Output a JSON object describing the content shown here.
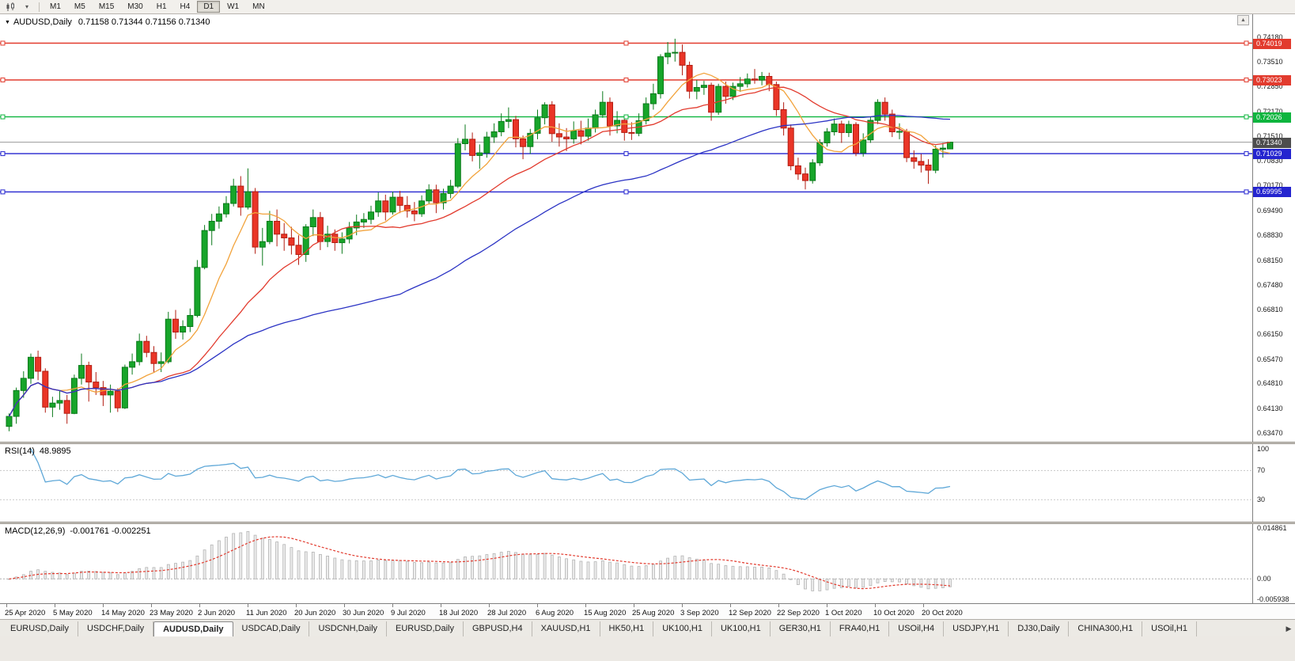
{
  "toolbar": {
    "timeframes": [
      "M1",
      "M5",
      "M15",
      "M30",
      "H1",
      "H4",
      "D1",
      "W1",
      "MN"
    ],
    "active_timeframe": "D1"
  },
  "chart": {
    "header": {
      "symbol_period": "AUDUSD,Daily",
      "ohlc": "0.71158 0.71344 0.71156 0.71340"
    },
    "axis_max": 0.7418,
    "axis_min": 0.6347,
    "price_axis": [
      "0.74180",
      "0.73510",
      "0.72850",
      "0.72170",
      "0.71510",
      "0.70830",
      "0.70170",
      "0.69490",
      "0.68830",
      "0.68150",
      "0.67480",
      "0.66810",
      "0.66150",
      "0.65470",
      "0.64810",
      "0.64130",
      "0.63470"
    ],
    "current_price": {
      "value": "0.71340",
      "price": 0.7134,
      "tag_color": "#4d4d4d"
    },
    "levels": [
      {
        "label": "0.74019",
        "price": 0.74019,
        "color": "#e23b2e"
      },
      {
        "label": "0.73023",
        "price": 0.73023,
        "color": "#e23b2e"
      },
      {
        "label": "0.72026",
        "price": 0.72026,
        "color": "#0eb53e"
      },
      {
        "label": "0.71029",
        "price": 0.71029,
        "color": "#2424cf"
      },
      {
        "label": "0.69995",
        "price": 0.69995,
        "color": "#2424cf"
      }
    ]
  },
  "chart_data": {
    "type": "candlestick",
    "symbol": "AUDUSD",
    "timeframe": "Daily",
    "x_labels": [
      "25 Apr 2020",
      "5 May 2020",
      "14 May 2020",
      "23 May 2020",
      "2 Jun 2020",
      "11 Jun 2020",
      "20 Jun 2020",
      "30 Jun 2020",
      "9 Jul 2020",
      "18 Jul 2020",
      "28 Jul 2020",
      "6 Aug 2020",
      "15 Aug 2020",
      "25 Aug 2020",
      "3 Sep 2020",
      "12 Sep 2020",
      "22 Sep 2020",
      "1 Oct 2020",
      "10 Oct 2020",
      "20 Oct 2020"
    ],
    "colors": {
      "up": "#17a52a",
      "up_border": "#0b7a1b",
      "down": "#ea3527",
      "down_border": "#b21d12",
      "ma_fast": "#f2a33c",
      "ma_mid": "#e23b2e",
      "ma_slow": "#2b33c4",
      "macd_bar": "#b4b4b4"
    },
    "candles": [
      [
        0.6365,
        0.64,
        0.6352,
        0.6392
      ],
      [
        0.6392,
        0.647,
        0.6372,
        0.6462
      ],
      [
        0.6462,
        0.6514,
        0.6442,
        0.6495
      ],
      [
        0.6495,
        0.6562,
        0.648,
        0.6552
      ],
      [
        0.6552,
        0.657,
        0.649,
        0.6514
      ],
      [
        0.6514,
        0.6522,
        0.6402,
        0.6417
      ],
      [
        0.6417,
        0.6445,
        0.639,
        0.6428
      ],
      [
        0.6428,
        0.6462,
        0.641,
        0.6435
      ],
      [
        0.6435,
        0.645,
        0.6372,
        0.64
      ],
      [
        0.64,
        0.6505,
        0.6398,
        0.6495
      ],
      [
        0.6495,
        0.6562,
        0.6478,
        0.653
      ],
      [
        0.653,
        0.654,
        0.6432,
        0.6485
      ],
      [
        0.6485,
        0.6512,
        0.645,
        0.647
      ],
      [
        0.647,
        0.6488,
        0.642,
        0.645
      ],
      [
        0.645,
        0.6478,
        0.6402,
        0.646
      ],
      [
        0.646,
        0.6468,
        0.6404,
        0.6415
      ],
      [
        0.6415,
        0.6532,
        0.6412,
        0.6525
      ],
      [
        0.6525,
        0.6562,
        0.6505,
        0.654
      ],
      [
        0.654,
        0.6616,
        0.653,
        0.6595
      ],
      [
        0.6595,
        0.661,
        0.6552,
        0.6565
      ],
      [
        0.6565,
        0.6582,
        0.651,
        0.6535
      ],
      [
        0.6535,
        0.6565,
        0.6512,
        0.654
      ],
      [
        0.654,
        0.6675,
        0.6535,
        0.6655
      ],
      [
        0.6655,
        0.668,
        0.6602,
        0.662
      ],
      [
        0.662,
        0.6652,
        0.66,
        0.6635
      ],
      [
        0.6635,
        0.6684,
        0.662,
        0.6665
      ],
      [
        0.6665,
        0.6815,
        0.666,
        0.6795
      ],
      [
        0.6795,
        0.691,
        0.679,
        0.6895
      ],
      [
        0.6895,
        0.694,
        0.6855,
        0.692
      ],
      [
        0.692,
        0.696,
        0.69,
        0.694
      ],
      [
        0.694,
        0.6988,
        0.693,
        0.6968
      ],
      [
        0.6968,
        0.7035,
        0.696,
        0.7015
      ],
      [
        0.7015,
        0.7042,
        0.6935,
        0.6958
      ],
      [
        0.6958,
        0.7063,
        0.6952,
        0.7
      ],
      [
        0.7,
        0.701,
        0.6832,
        0.685
      ],
      [
        0.685,
        0.6902,
        0.68,
        0.6865
      ],
      [
        0.6865,
        0.6948,
        0.6858,
        0.692
      ],
      [
        0.692,
        0.6952,
        0.6852,
        0.6885
      ],
      [
        0.6885,
        0.6915,
        0.684,
        0.6875
      ],
      [
        0.6875,
        0.6905,
        0.683,
        0.6855
      ],
      [
        0.6855,
        0.6882,
        0.6802,
        0.683
      ],
      [
        0.683,
        0.6912,
        0.681,
        0.6905
      ],
      [
        0.6905,
        0.6952,
        0.688,
        0.693
      ],
      [
        0.693,
        0.6945,
        0.6842,
        0.6865
      ],
      [
        0.6865,
        0.6908,
        0.685,
        0.6885
      ],
      [
        0.6885,
        0.6898,
        0.684,
        0.6862
      ],
      [
        0.6862,
        0.689,
        0.6832,
        0.6872
      ],
      [
        0.6872,
        0.6918,
        0.686,
        0.6902
      ],
      [
        0.6902,
        0.6938,
        0.6882,
        0.6918
      ],
      [
        0.6918,
        0.6942,
        0.6902,
        0.6925
      ],
      [
        0.6925,
        0.6962,
        0.6912,
        0.6945
      ],
      [
        0.6945,
        0.6998,
        0.6932,
        0.6975
      ],
      [
        0.6975,
        0.6992,
        0.6922,
        0.6945
      ],
      [
        0.6945,
        0.7,
        0.6938,
        0.6985
      ],
      [
        0.6985,
        0.7002,
        0.6942,
        0.6963
      ],
      [
        0.6963,
        0.6988,
        0.693,
        0.6948
      ],
      [
        0.6948,
        0.6972,
        0.692,
        0.694
      ],
      [
        0.694,
        0.699,
        0.6932,
        0.6975
      ],
      [
        0.6975,
        0.702,
        0.6968,
        0.7005
      ],
      [
        0.7005,
        0.7019,
        0.6942,
        0.697
      ],
      [
        0.697,
        0.7008,
        0.6952,
        0.6995
      ],
      [
        0.6995,
        0.7032,
        0.6982,
        0.7015
      ],
      [
        0.7015,
        0.7145,
        0.701,
        0.713
      ],
      [
        0.713,
        0.7182,
        0.7112,
        0.7142
      ],
      [
        0.7142,
        0.716,
        0.7082,
        0.7098
      ],
      [
        0.7098,
        0.7128,
        0.7062,
        0.7105
      ],
      [
        0.7105,
        0.7162,
        0.7092,
        0.7148
      ],
      [
        0.7148,
        0.7185,
        0.7132,
        0.7162
      ],
      [
        0.7162,
        0.7212,
        0.715,
        0.719
      ],
      [
        0.719,
        0.7228,
        0.7172,
        0.7195
      ],
      [
        0.7195,
        0.7205,
        0.712,
        0.7143
      ],
      [
        0.7143,
        0.7152,
        0.7088,
        0.7122
      ],
      [
        0.7122,
        0.717,
        0.7102,
        0.7158
      ],
      [
        0.7158,
        0.7222,
        0.7142,
        0.72
      ],
      [
        0.72,
        0.7242,
        0.7182,
        0.7235
      ],
      [
        0.7235,
        0.7245,
        0.7135,
        0.7157
      ],
      [
        0.7157,
        0.7185,
        0.7122,
        0.7148
      ],
      [
        0.7148,
        0.7172,
        0.711,
        0.7143
      ],
      [
        0.7143,
        0.719,
        0.713,
        0.7165
      ],
      [
        0.7165,
        0.7192,
        0.7128,
        0.715
      ],
      [
        0.715,
        0.7198,
        0.7138,
        0.7172
      ],
      [
        0.7172,
        0.7222,
        0.716,
        0.7208
      ],
      [
        0.7208,
        0.7272,
        0.72,
        0.7242
      ],
      [
        0.7242,
        0.7255,
        0.7152,
        0.7178
      ],
      [
        0.7178,
        0.7218,
        0.7158,
        0.7193
      ],
      [
        0.7193,
        0.7205,
        0.7138,
        0.716
      ],
      [
        0.716,
        0.7188,
        0.714,
        0.7158
      ],
      [
        0.7158,
        0.7212,
        0.715,
        0.7192
      ],
      [
        0.7192,
        0.7255,
        0.7182,
        0.7238
      ],
      [
        0.7238,
        0.7292,
        0.7222,
        0.7265
      ],
      [
        0.7265,
        0.7372,
        0.7252,
        0.7365
      ],
      [
        0.7365,
        0.7405,
        0.7345,
        0.7375
      ],
      [
        0.7375,
        0.7414,
        0.7352,
        0.7377
      ],
      [
        0.7377,
        0.7398,
        0.7315,
        0.7342
      ],
      [
        0.7342,
        0.7352,
        0.7252,
        0.7272
      ],
      [
        0.7272,
        0.7302,
        0.725,
        0.7282
      ],
      [
        0.7282,
        0.73,
        0.7262,
        0.7288
      ],
      [
        0.7288,
        0.7295,
        0.7192,
        0.7215
      ],
      [
        0.7215,
        0.7292,
        0.7208,
        0.7285
      ],
      [
        0.7285,
        0.7298,
        0.7238,
        0.7258
      ],
      [
        0.7258,
        0.7295,
        0.7248,
        0.7285
      ],
      [
        0.7285,
        0.731,
        0.727,
        0.7292
      ],
      [
        0.7292,
        0.732,
        0.7282,
        0.7305
      ],
      [
        0.7305,
        0.7332,
        0.7292,
        0.7302
      ],
      [
        0.7302,
        0.7324,
        0.7288,
        0.7312
      ],
      [
        0.7312,
        0.7322,
        0.7272,
        0.729
      ],
      [
        0.729,
        0.7298,
        0.7205,
        0.7222
      ],
      [
        0.7222,
        0.7242,
        0.7152,
        0.7172
      ],
      [
        0.7172,
        0.7182,
        0.7058,
        0.707
      ],
      [
        0.707,
        0.7092,
        0.7032,
        0.7048
      ],
      [
        0.7048,
        0.7065,
        0.7006,
        0.703
      ],
      [
        0.703,
        0.7088,
        0.7022,
        0.7078
      ],
      [
        0.7078,
        0.7142,
        0.707,
        0.7132
      ],
      [
        0.7132,
        0.7172,
        0.7122,
        0.7162
      ],
      [
        0.7162,
        0.7198,
        0.7152,
        0.7183
      ],
      [
        0.7183,
        0.7192,
        0.7132,
        0.716
      ],
      [
        0.716,
        0.7192,
        0.7148,
        0.7182
      ],
      [
        0.7182,
        0.7188,
        0.7096,
        0.7105
      ],
      [
        0.7105,
        0.7158,
        0.7095,
        0.714
      ],
      [
        0.714,
        0.7202,
        0.7132,
        0.7193
      ],
      [
        0.7193,
        0.725,
        0.7183,
        0.7242
      ],
      [
        0.7242,
        0.7255,
        0.7192,
        0.721
      ],
      [
        0.721,
        0.7222,
        0.7148,
        0.7162
      ],
      [
        0.7162,
        0.7185,
        0.7142,
        0.7163
      ],
      [
        0.7163,
        0.717,
        0.708,
        0.7092
      ],
      [
        0.7092,
        0.7112,
        0.7062,
        0.7082
      ],
      [
        0.7082,
        0.7102,
        0.7052,
        0.7072
      ],
      [
        0.7072,
        0.7088,
        0.7021,
        0.7058
      ],
      [
        0.7058,
        0.7125,
        0.705,
        0.7115
      ],
      [
        0.7115,
        0.7132,
        0.7092,
        0.7118
      ],
      [
        0.71158,
        0.71344,
        0.71156,
        0.7134
      ]
    ]
  },
  "rsi": {
    "name": "RSI(14)",
    "value": "48.9895",
    "period": 14,
    "levels": [
      "100",
      "70",
      "30"
    ],
    "line_color": "#5fa8d8"
  },
  "macd": {
    "name": "MACD(12,26,9)",
    "values": "-0.001761 -0.002251",
    "fast": 12,
    "slow": 26,
    "signal_period": 9,
    "axis": [
      "0.014861",
      "0.00",
      "-0.005938"
    ],
    "axis_max": 0.014861,
    "axis_min": -0.005938,
    "signal_color": "#e23b2e"
  },
  "tabs": {
    "active_index": 2,
    "items": [
      "EURUSD,Daily",
      "USDCHF,Daily",
      "AUDUSD,Daily",
      "USDCAD,Daily",
      "USDCNH,Daily",
      "EURUSD,Daily",
      "GBPUSD,H4",
      "XAUUSD,H1",
      "HK50,H1",
      "UK100,H1",
      "UK100,H1",
      "GER30,H1",
      "FRA40,H1",
      "USOil,H4",
      "USDJPY,H1",
      "DJ30,Daily",
      "CHINA300,H1",
      "USOil,H1"
    ]
  }
}
